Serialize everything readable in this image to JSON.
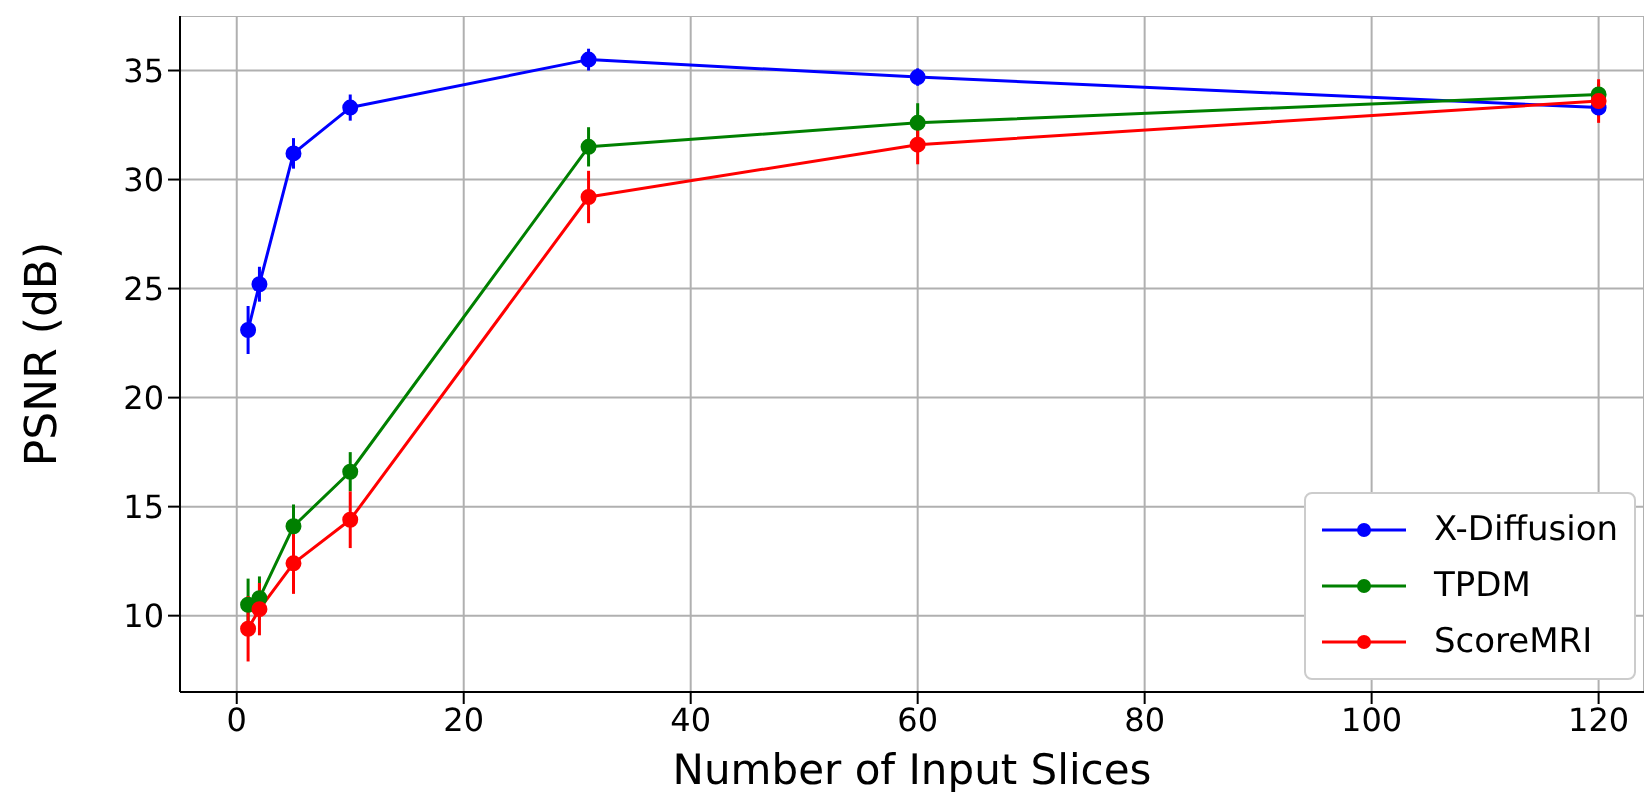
{
  "chart_data": {
    "type": "line",
    "xlabel": "Number of Input Slices",
    "ylabel": "PSNR (dB)",
    "x": [
      1,
      2,
      5,
      10,
      31,
      60,
      120
    ],
    "series": [
      {
        "name": "X-Diffusion",
        "color": "#0000ff",
        "values": [
          23.1,
          25.2,
          31.2,
          33.3,
          35.5,
          34.7,
          33.3
        ],
        "errors": [
          1.1,
          0.8,
          0.7,
          0.6,
          0.5,
          0.4,
          0.4
        ]
      },
      {
        "name": "TPDM",
        "color": "#008000",
        "values": [
          10.5,
          10.8,
          14.1,
          16.6,
          31.5,
          32.6,
          33.9
        ],
        "errors": [
          1.2,
          1.0,
          1.0,
          0.9,
          0.9,
          0.9,
          0.5
        ]
      },
      {
        "name": "ScoreMRI",
        "color": "#ff0000",
        "values": [
          9.4,
          10.3,
          12.4,
          14.4,
          29.2,
          31.6,
          33.6
        ],
        "errors": [
          1.5,
          1.2,
          1.4,
          1.3,
          1.2,
          0.9,
          1.0
        ]
      }
    ],
    "xlim": [
      -5,
      124
    ],
    "xticks": [
      0,
      20,
      40,
      60,
      80,
      100,
      120
    ],
    "ylim": [
      6.5,
      37.5
    ],
    "yticks": [
      10,
      15,
      20,
      25,
      30,
      35
    ],
    "grid": true,
    "legend": "bottom right",
    "marker": "circle",
    "line_style": "solid"
  }
}
